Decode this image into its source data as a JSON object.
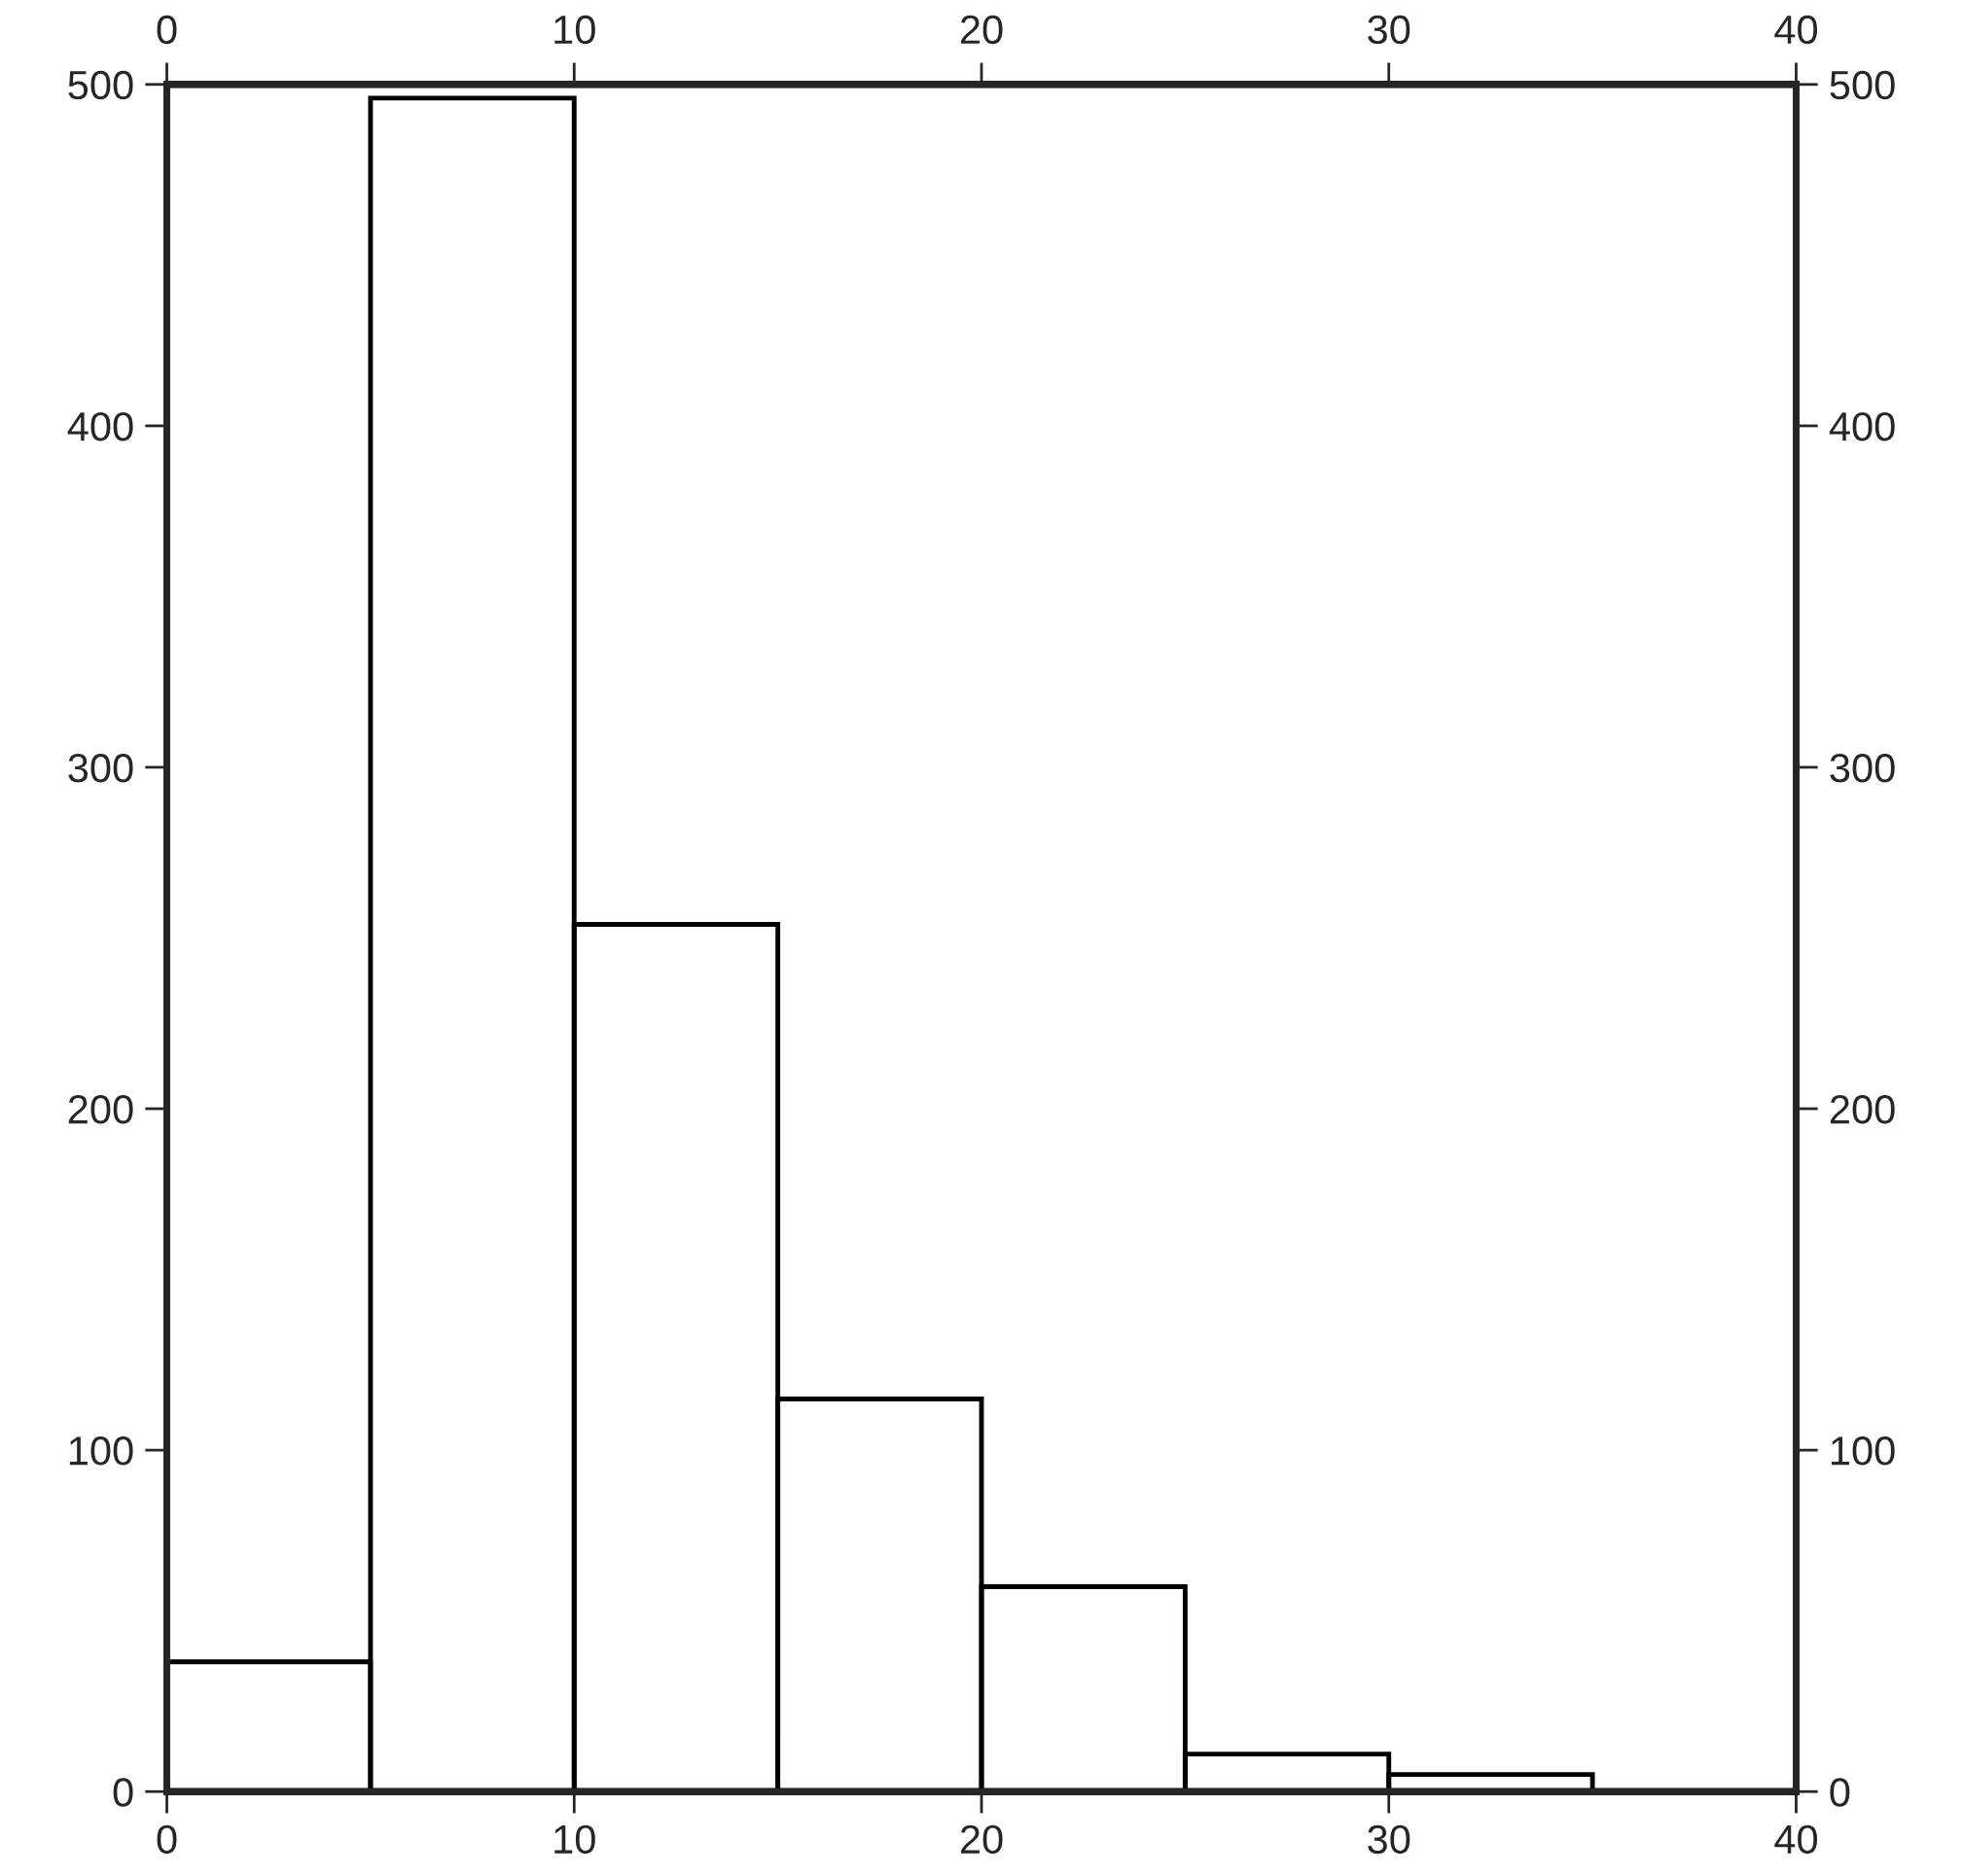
{
  "chart_data": {
    "type": "histogram",
    "bins": [
      0,
      5,
      10,
      15,
      20,
      25,
      30,
      35
    ],
    "values": [
      38,
      496,
      254,
      115,
      60,
      11,
      5
    ],
    "color": "#000000",
    "xlim": [
      0,
      40
    ],
    "xticks": [
      0,
      10,
      20,
      30,
      40
    ],
    "x2lim": [
      0,
      40
    ],
    "x2ticks": [
      0,
      10,
      20,
      30,
      40
    ],
    "ylim": [
      0,
      500
    ],
    "yticks": [
      0,
      100,
      200,
      300,
      400,
      500
    ],
    "y2lim": [
      0,
      500
    ],
    "y2ticks": [
      0,
      100,
      200,
      300,
      400,
      500
    ],
    "grid": false
  }
}
